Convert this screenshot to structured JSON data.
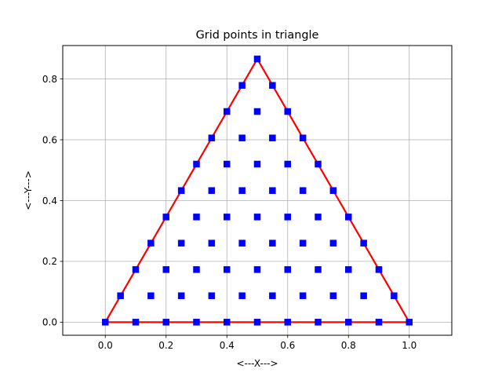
{
  "chart_data": {
    "type": "scatter",
    "title": "Grid points in triangle",
    "xlabel": "<---X--->",
    "ylabel": "<---Y--->",
    "xlim": [
      -0.14,
      1.14
    ],
    "ylim": [
      -0.043,
      0.91
    ],
    "grid": true,
    "legend": "none",
    "x_ticks": [
      0.0,
      0.2,
      0.4,
      0.6,
      0.8,
      1.0
    ],
    "x_tick_labels": [
      "0.0",
      "0.2",
      "0.4",
      "0.6",
      "0.8",
      "1.0"
    ],
    "y_ticks": [
      0.0,
      0.2,
      0.4,
      0.6,
      0.8
    ],
    "y_tick_labels": [
      "0.0",
      "0.2",
      "0.4",
      "0.6",
      "0.8"
    ],
    "triangle_outline": {
      "color": "#ff0000",
      "vertices": [
        [
          0.0,
          0.0
        ],
        [
          1.0,
          0.0
        ],
        [
          0.5,
          0.866
        ],
        [
          0.0,
          0.0
        ]
      ]
    },
    "points": {
      "color": "#0000ff",
      "marker": "square",
      "rows": [
        {
          "y": 0.0,
          "x": [
            0.0,
            0.1,
            0.2,
            0.3,
            0.4,
            0.5,
            0.6,
            0.7,
            0.8,
            0.9,
            1.0
          ]
        },
        {
          "y": 0.087,
          "x": [
            0.05,
            0.15,
            0.25,
            0.35,
            0.45,
            0.55,
            0.65,
            0.75,
            0.85,
            0.95
          ]
        },
        {
          "y": 0.173,
          "x": [
            0.1,
            0.2,
            0.3,
            0.4,
            0.5,
            0.6,
            0.7,
            0.8,
            0.9
          ]
        },
        {
          "y": 0.26,
          "x": [
            0.15,
            0.25,
            0.35,
            0.45,
            0.55,
            0.65,
            0.75,
            0.85
          ]
        },
        {
          "y": 0.346,
          "x": [
            0.2,
            0.3,
            0.4,
            0.5,
            0.6,
            0.7,
            0.8
          ]
        },
        {
          "y": 0.433,
          "x": [
            0.25,
            0.35,
            0.45,
            0.55,
            0.65,
            0.75
          ]
        },
        {
          "y": 0.52,
          "x": [
            0.3,
            0.4,
            0.5,
            0.6,
            0.7
          ]
        },
        {
          "y": 0.606,
          "x": [
            0.35,
            0.45,
            0.55,
            0.65
          ]
        },
        {
          "y": 0.693,
          "x": [
            0.4,
            0.5,
            0.6
          ]
        },
        {
          "y": 0.779,
          "x": [
            0.45,
            0.55
          ]
        },
        {
          "y": 0.866,
          "x": [
            0.5
          ]
        }
      ]
    }
  }
}
